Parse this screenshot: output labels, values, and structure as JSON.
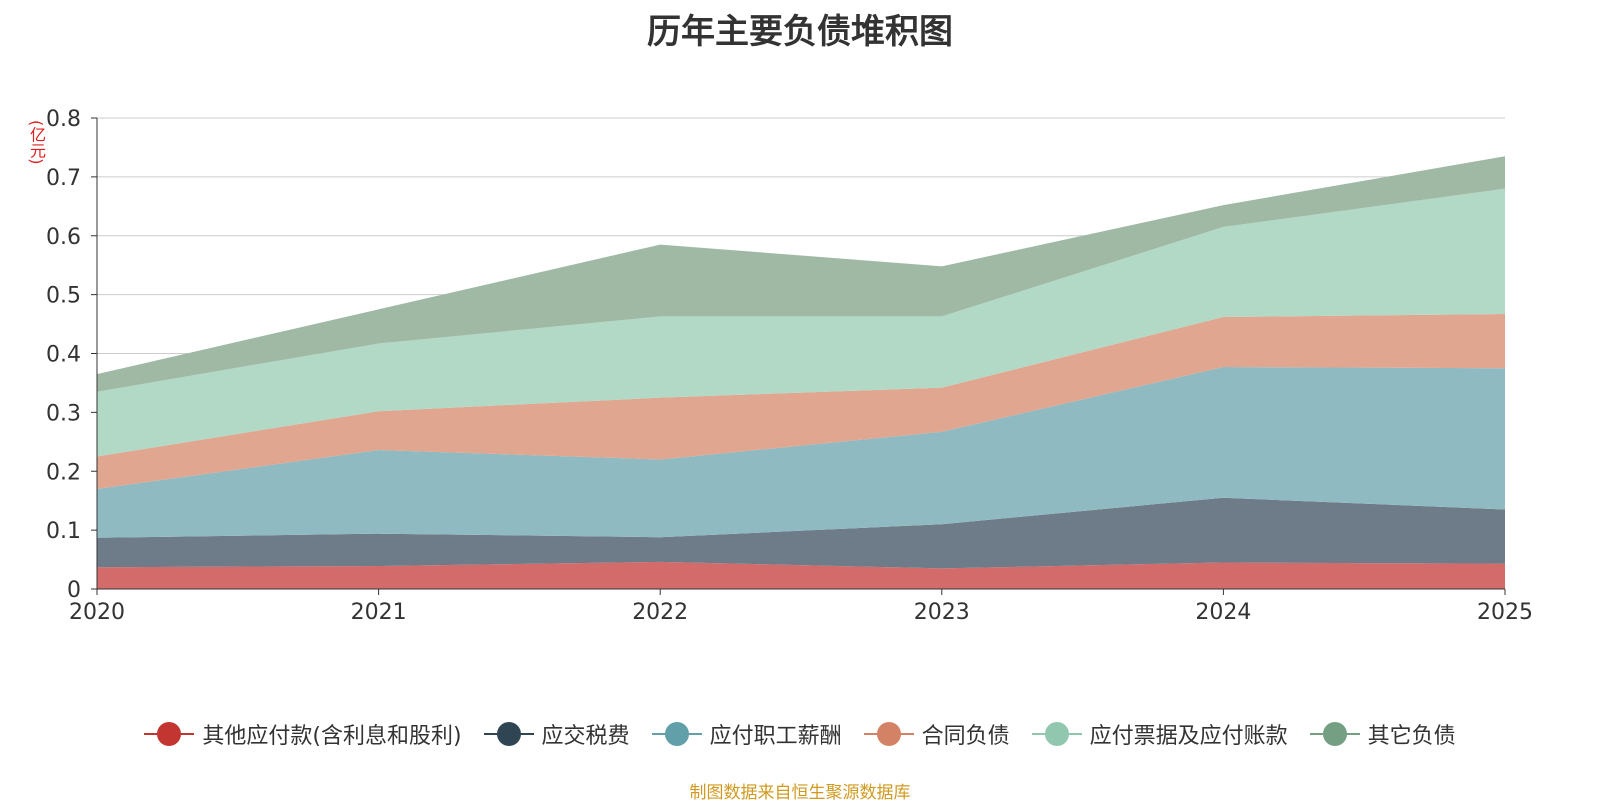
{
  "chart_data": {
    "type": "area",
    "stacked": true,
    "title": "历年主要负债堆积图",
    "unit": "(亿元)",
    "categories": [
      "2020",
      "2021",
      "2022",
      "2023",
      "2024",
      "2025"
    ],
    "ylim": [
      0,
      0.8
    ],
    "yticks": [
      "0",
      "0.1",
      "0.2",
      "0.3",
      "0.4",
      "0.5",
      "0.6",
      "0.7",
      "0.8"
    ],
    "grid": true,
    "legend_position": "bottom",
    "series": [
      {
        "name": "其他应付款(含利息和股利)",
        "values": [
          0.037,
          0.039,
          0.046,
          0.035,
          0.045,
          0.043
        ],
        "color": "#d46b6b",
        "legend_color": "#c23531"
      },
      {
        "name": "应交税费",
        "values": [
          0.05,
          0.055,
          0.042,
          0.075,
          0.11,
          0.092
        ],
        "color": "#6e7b88",
        "legend_color": "#2f4554"
      },
      {
        "name": "应付职工薪酬",
        "values": [
          0.083,
          0.142,
          0.132,
          0.157,
          0.222,
          0.24
        ],
        "color": "#90bac1",
        "legend_color": "#61a0a8"
      },
      {
        "name": "合同负债",
        "values": [
          0.055,
          0.066,
          0.105,
          0.075,
          0.085,
          0.092
        ],
        "color": "#e0a690",
        "legend_color": "#d48265"
      },
      {
        "name": "应付票据及应付账款",
        "values": [
          0.11,
          0.115,
          0.138,
          0.121,
          0.153,
          0.213
        ],
        "color": "#b2d8c6",
        "legend_color": "#91c7ae"
      },
      {
        "name": "其它负债",
        "values": [
          0.03,
          0.058,
          0.122,
          0.085,
          0.037,
          0.055
        ],
        "color": "#9fb9a5",
        "legend_color": "#749f83"
      }
    ]
  },
  "footer": "制图数据来自恒生聚源数据库"
}
